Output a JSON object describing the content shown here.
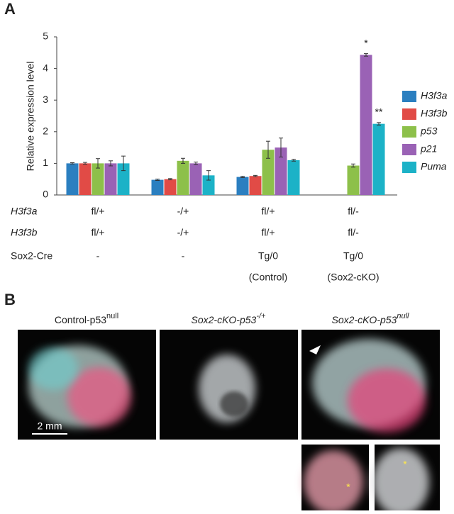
{
  "panel_a": {
    "label": "A"
  },
  "chart_data": {
    "type": "bar",
    "y_label": "Relative expression level",
    "categories": [
      null,
      null,
      null,
      null
    ],
    "series": [
      {
        "name": "H3f3a",
        "color": "#2b7fc0",
        "values": [
          1.0,
          0.48,
          0.57,
          0
        ],
        "errors": [
          0.02,
          0.02,
          0.02,
          null
        ]
      },
      {
        "name": "H3f3b",
        "color": "#e14b46",
        "values": [
          1.0,
          0.5,
          0.6,
          0
        ],
        "errors": [
          0.03,
          0.02,
          0.02,
          null
        ]
      },
      {
        "name": "p53",
        "color": "#8dc04a",
        "values": [
          1.0,
          1.08,
          1.43,
          0.93
        ],
        "errors": [
          0.15,
          0.08,
          0.27,
          0.05
        ]
      },
      {
        "name": "p21",
        "color": "#9a62b5",
        "values": [
          1.0,
          1.0,
          1.5,
          4.43
        ],
        "errors": [
          0.08,
          0.04,
          0.3,
          0.04
        ]
      },
      {
        "name": "Puma",
        "color": "#1cb2c7",
        "values": [
          1.0,
          0.62,
          1.1,
          2.25
        ],
        "errors": [
          0.23,
          0.15,
          0.03,
          0.04
        ]
      }
    ],
    "annotations": [
      {
        "series": 3,
        "category": 3,
        "text": "*"
      },
      {
        "series": 4,
        "category": 3,
        "text": "**"
      }
    ],
    "ylim": [
      0,
      5
    ],
    "yticks": [
      0,
      1,
      2,
      3,
      4,
      5
    ],
    "grid": false,
    "legend": "right"
  },
  "genotype_table": {
    "rows": [
      {
        "label": "H3f3a",
        "values": [
          "fl/+",
          "-/+",
          "fl/+",
          "fl/-"
        ]
      },
      {
        "label": "H3f3b",
        "values": [
          "fl/+",
          "-/+",
          "fl/+",
          "fl/-"
        ]
      },
      {
        "label": "Sox2-Cre",
        "values": [
          "-",
          "-",
          "Tg/0",
          "Tg/0"
        ]
      },
      {
        "label": null,
        "values": [
          null,
          null,
          "(Control)",
          "(Sox2-cKO)"
        ]
      }
    ]
  },
  "panel_b": {
    "label": "B",
    "images": [
      {
        "title": "Control-p53",
        "sup": "null"
      },
      {
        "title": "Sox2-cKO-p53",
        "sup": "-/+"
      },
      {
        "title": "Sox2-cKO-p53",
        "sup": "null"
      }
    ],
    "scale_bar": "2 mm",
    "inset_markers": [
      "*",
      "*"
    ]
  }
}
